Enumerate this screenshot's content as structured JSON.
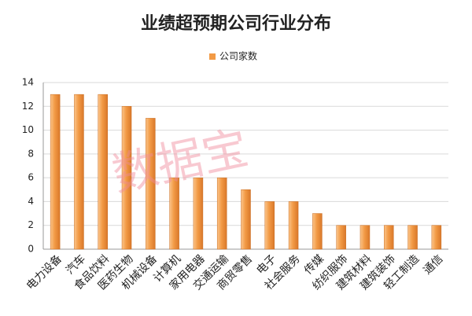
{
  "chart_data": {
    "type": "bar",
    "title": "业绩超预期公司行业分布",
    "watermark": "数据宝",
    "categories": [
      "电力设备",
      "汽车",
      "食品饮料",
      "医药生物",
      "机械设备",
      "计算机",
      "家用电器",
      "交通运输",
      "商贸零售",
      "电子",
      "社会服务",
      "传媒",
      "纺织服饰",
      "建筑材料",
      "建筑装饰",
      "轻工制造",
      "通信"
    ],
    "series": [
      {
        "name": "公司家数",
        "color": "#f29a45",
        "values": [
          13,
          13,
          13,
          12,
          11,
          6,
          6,
          6,
          5,
          4,
          4,
          3,
          2,
          2,
          2,
          2,
          2
        ]
      }
    ],
    "ylim": [
      0,
      14
    ],
    "yticks": [
      0,
      2,
      4,
      6,
      8,
      10,
      12,
      14
    ],
    "grid": true,
    "legend": "top"
  }
}
